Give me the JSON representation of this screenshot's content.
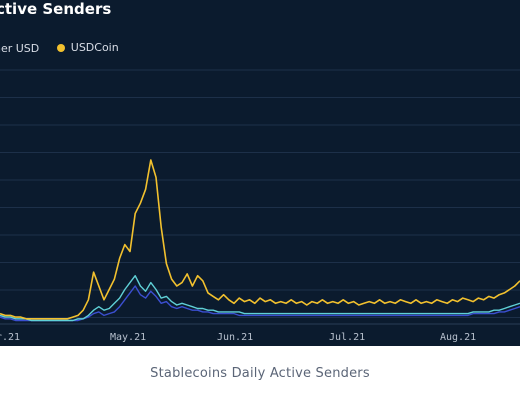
{
  "chart_data": {
    "type": "line",
    "title": "ctive Senders",
    "caption": "Stablecoins Daily Active Senders",
    "x_tick_labels": [
      "r.21",
      "May.21",
      "Jun.21",
      "Jul.21",
      "Aug.21"
    ],
    "grid": true,
    "legend_position": "top-left",
    "series": [
      {
        "name": "her USD",
        "color": "#3b4fd1",
        "values": [
          0.04,
          0.03,
          0.03,
          0.02,
          0.02,
          0.02,
          0.02,
          0.02,
          0.02,
          0.02,
          0.02,
          0.02,
          0.02,
          0.02,
          0.02,
          0.02,
          0.03,
          0.04,
          0.06,
          0.07,
          0.05,
          0.06,
          0.07,
          0.1,
          0.14,
          0.18,
          0.22,
          0.17,
          0.15,
          0.19,
          0.16,
          0.12,
          0.13,
          0.1,
          0.09,
          0.1,
          0.09,
          0.08,
          0.08,
          0.07,
          0.07,
          0.06,
          0.06,
          0.06,
          0.06,
          0.06,
          0.05,
          0.05,
          0.05,
          0.05,
          0.05,
          0.05,
          0.05,
          0.05,
          0.05,
          0.05,
          0.05,
          0.05,
          0.05,
          0.05,
          0.05,
          0.05,
          0.05,
          0.05,
          0.05,
          0.05,
          0.05,
          0.05,
          0.05,
          0.05,
          0.05,
          0.05,
          0.05,
          0.05,
          0.05,
          0.05,
          0.05,
          0.05,
          0.05,
          0.05,
          0.05,
          0.05,
          0.05,
          0.05,
          0.05,
          0.05,
          0.05,
          0.05,
          0.05,
          0.05,
          0.05,
          0.06,
          0.06,
          0.06,
          0.06,
          0.06,
          0.07,
          0.07,
          0.08,
          0.09,
          0.1
        ]
      },
      {
        "name": "",
        "color": "#5fd0d6",
        "values": [
          0.05,
          0.04,
          0.04,
          0.03,
          0.03,
          0.03,
          0.02,
          0.02,
          0.02,
          0.02,
          0.02,
          0.02,
          0.02,
          0.02,
          0.02,
          0.03,
          0.03,
          0.05,
          0.08,
          0.1,
          0.08,
          0.09,
          0.12,
          0.15,
          0.2,
          0.24,
          0.28,
          0.22,
          0.19,
          0.24,
          0.2,
          0.15,
          0.16,
          0.13,
          0.11,
          0.12,
          0.11,
          0.1,
          0.09,
          0.09,
          0.08,
          0.08,
          0.07,
          0.07,
          0.07,
          0.07,
          0.07,
          0.06,
          0.06,
          0.06,
          0.06,
          0.06,
          0.06,
          0.06,
          0.06,
          0.06,
          0.06,
          0.06,
          0.06,
          0.06,
          0.06,
          0.06,
          0.06,
          0.06,
          0.06,
          0.06,
          0.06,
          0.06,
          0.06,
          0.06,
          0.06,
          0.06,
          0.06,
          0.06,
          0.06,
          0.06,
          0.06,
          0.06,
          0.06,
          0.06,
          0.06,
          0.06,
          0.06,
          0.06,
          0.06,
          0.06,
          0.06,
          0.06,
          0.06,
          0.06,
          0.06,
          0.07,
          0.07,
          0.07,
          0.07,
          0.08,
          0.08,
          0.09,
          0.1,
          0.11,
          0.12
        ]
      },
      {
        "name": "USDCoin",
        "color": "#f2c12e",
        "values": [
          0.06,
          0.05,
          0.05,
          0.04,
          0.04,
          0.03,
          0.03,
          0.03,
          0.03,
          0.03,
          0.03,
          0.03,
          0.03,
          0.03,
          0.04,
          0.05,
          0.08,
          0.14,
          0.3,
          0.22,
          0.14,
          0.2,
          0.26,
          0.38,
          0.46,
          0.42,
          0.64,
          0.7,
          0.78,
          0.95,
          0.85,
          0.56,
          0.35,
          0.26,
          0.22,
          0.24,
          0.29,
          0.22,
          0.28,
          0.25,
          0.18,
          0.16,
          0.14,
          0.17,
          0.14,
          0.12,
          0.15,
          0.13,
          0.14,
          0.12,
          0.15,
          0.13,
          0.14,
          0.12,
          0.13,
          0.12,
          0.14,
          0.12,
          0.13,
          0.11,
          0.13,
          0.12,
          0.14,
          0.12,
          0.13,
          0.12,
          0.14,
          0.12,
          0.13,
          0.11,
          0.12,
          0.13,
          0.12,
          0.14,
          0.12,
          0.13,
          0.12,
          0.14,
          0.13,
          0.12,
          0.14,
          0.12,
          0.13,
          0.12,
          0.14,
          0.13,
          0.12,
          0.14,
          0.13,
          0.15,
          0.14,
          0.13,
          0.15,
          0.14,
          0.16,
          0.15,
          0.17,
          0.18,
          0.2,
          0.22,
          0.25
        ]
      }
    ]
  }
}
